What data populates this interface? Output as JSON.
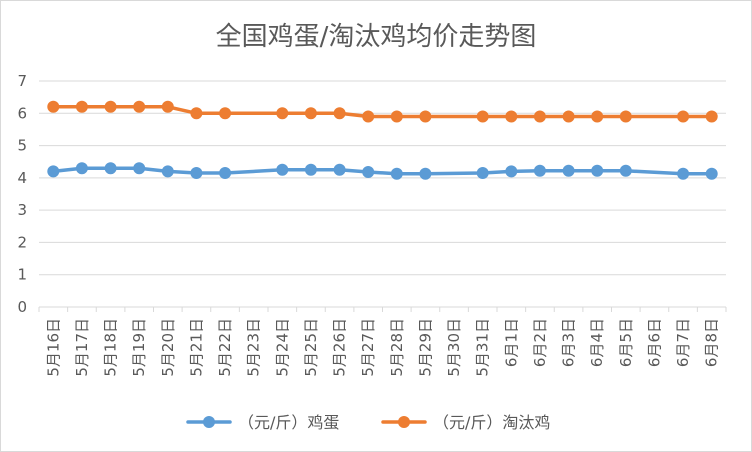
{
  "chart_data": {
    "type": "line",
    "title": "全国鸡蛋/淘汰鸡均价走势图",
    "xlabel": "",
    "ylabel": "",
    "ylim": [
      0,
      7
    ],
    "yticks": [
      "0",
      "1",
      "2",
      "3",
      "4",
      "5",
      "6",
      "7"
    ],
    "grid": true,
    "legend_position": "bottom",
    "categories": [
      "5月16日",
      "5月17日",
      "5月18日",
      "5月19日",
      "5月20日",
      "5月21日",
      "5月22日",
      "5月23日",
      "5月24日",
      "5月25日",
      "5月26日",
      "5月27日",
      "5月28日",
      "5月29日",
      "5月30日",
      "5月31日",
      "6月1日",
      "6月2日",
      "6月3日",
      "6月4日",
      "6月5日",
      "6月6日",
      "6月7日",
      "6月8日"
    ],
    "series": [
      {
        "name": "（元/斤）鸡蛋",
        "color": "#5b9bd5",
        "values": [
          4.2,
          4.3,
          4.3,
          4.3,
          4.2,
          4.15,
          4.15,
          null,
          4.25,
          4.25,
          4.25,
          4.18,
          4.13,
          4.13,
          null,
          4.15,
          4.2,
          4.22,
          4.22,
          4.22,
          4.22,
          null,
          4.13,
          4.13
        ]
      },
      {
        "name": "（元/斤）淘汰鸡",
        "color": "#ed7d31",
        "values": [
          6.2,
          6.2,
          6.2,
          6.2,
          6.2,
          6.0,
          6.0,
          null,
          6.0,
          6.0,
          6.0,
          5.9,
          5.9,
          5.9,
          null,
          5.9,
          5.9,
          5.9,
          5.9,
          5.9,
          5.9,
          null,
          5.9,
          5.9
        ]
      }
    ]
  }
}
